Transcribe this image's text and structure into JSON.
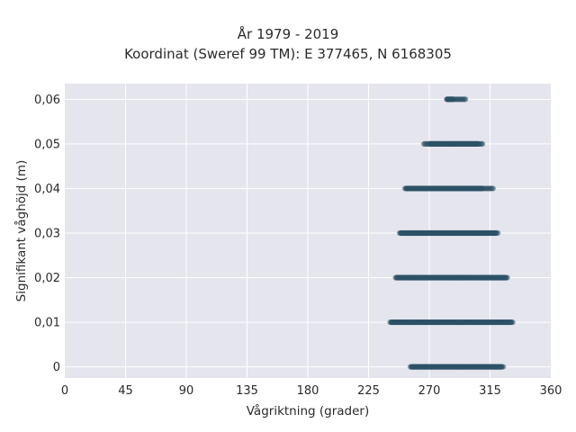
{
  "chart_data": {
    "type": "scatter",
    "title_line1": "År 1979 - 2019",
    "title_line2": "Koordinat (Sweref 99 TM): E 377465, N 6168305",
    "xlabel": "Vågriktning (grader)",
    "ylabel": "Signifikant våghöjd (m)",
    "xlim": [
      0,
      360
    ],
    "ylim": [
      -0.0025,
      0.0635
    ],
    "grid": true,
    "x_ticks": [
      0,
      45,
      90,
      135,
      180,
      225,
      270,
      315,
      360
    ],
    "x_tick_labels": [
      "0",
      "45",
      "90",
      "135",
      "180",
      "225",
      "270",
      "315",
      "360"
    ],
    "y_ticks": [
      0,
      0.01,
      0.02,
      0.03,
      0.04,
      0.05,
      0.06
    ],
    "y_tick_labels": [
      "0",
      "0,01",
      "0,02",
      "0,03",
      "0,04",
      "0,05",
      "0,06"
    ],
    "point_color": "#2e5266",
    "point_ranges": [
      {
        "y": 0.0,
        "x_min": 256,
        "x_max": 325,
        "dense_min": 257,
        "dense_max": 324
      },
      {
        "y": 0.01,
        "x_min": 241,
        "x_max": 332,
        "dense_min": 242,
        "dense_max": 331
      },
      {
        "y": 0.02,
        "x_min": 245,
        "x_max": 328,
        "dense_min": 246,
        "dense_max": 327
      },
      {
        "y": 0.03,
        "x_min": 248,
        "x_max": 321,
        "dense_min": 249,
        "dense_max": 320
      },
      {
        "y": 0.04,
        "x_min": 252,
        "x_max": 318,
        "dense_min": 253,
        "dense_max": 310
      },
      {
        "y": 0.05,
        "x_min": 266,
        "x_max": 310,
        "dense_min": 270,
        "dense_max": 307
      },
      {
        "y": 0.06,
        "x_min": 283,
        "x_max": 297,
        "dense_min": 283,
        "dense_max": 288
      }
    ]
  },
  "colors": {
    "plot_background": "#e5e5ee",
    "grid": "#ffffff",
    "text": "#2a2a2a"
  }
}
